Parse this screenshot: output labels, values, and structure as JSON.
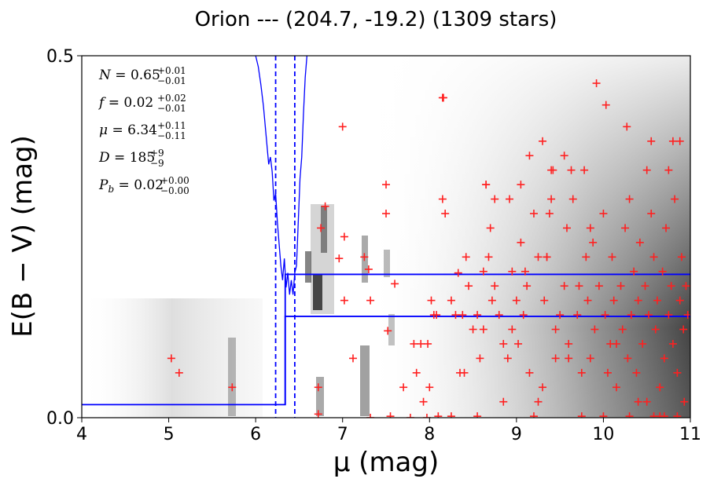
{
  "chart_data": {
    "type": "scatter",
    "title": "Orion --- (204.7, -19.2) (1309 stars)",
    "xlabel": "μ (mag)",
    "ylabel": "E(B − V) (mag)",
    "xlim": [
      4,
      11
    ],
    "ylim": [
      0,
      0.5
    ],
    "xticks": [
      "4",
      "5",
      "6",
      "7",
      "8",
      "9",
      "10",
      "11"
    ],
    "yticks": [
      "0.0",
      "0.5"
    ],
    "annotations": {
      "N": {
        "name": "N",
        "value": "0.65",
        "up": "+0.01",
        "down": "−0.01"
      },
      "f": {
        "name": "f",
        "value": "0.02",
        "up": "+0.02",
        "down": "−0.01"
      },
      "mu": {
        "name": "μ",
        "value": "6.34",
        "up": "+0.11",
        "down": "−0.11"
      },
      "D": {
        "name": "D",
        "value": "185",
        "up": "+9",
        "down": "−9"
      },
      "Pb": {
        "name": "P",
        "sub": "b",
        "value": "0.02",
        "up": "+0.00",
        "down": "−0.00"
      }
    },
    "marker_color": "#ff2020",
    "line_color": "#0000ff",
    "grayscale_background": "stellar extinction probability density",
    "step_model": {
      "mu_break": 6.34,
      "ebv_near": 0.018,
      "ebv_far_lower": 0.14,
      "ebv_far_upper": 0.198
    },
    "mu_bounds_dashed": [
      6.23,
      6.45
    ],
    "foreground_dust": {
      "x": [
        6.0,
        6.03,
        6.06,
        6.09,
        6.12,
        6.15,
        6.17,
        6.19,
        6.21,
        6.23,
        6.25,
        6.27,
        6.29,
        6.31,
        6.33,
        6.35,
        6.37,
        6.39,
        6.41,
        6.43,
        6.45,
        6.47,
        6.49,
        6.51,
        6.53,
        6.55,
        6.57,
        6.59
      ],
      "y": [
        0.5,
        0.485,
        0.46,
        0.43,
        0.39,
        0.35,
        0.36,
        0.34,
        0.3,
        0.31,
        0.27,
        0.24,
        0.21,
        0.19,
        0.22,
        0.18,
        0.2,
        0.17,
        0.19,
        0.17,
        0.2,
        0.21,
        0.27,
        0.33,
        0.36,
        0.42,
        0.47,
        0.5
      ]
    },
    "points": {
      "x": [
        5.03,
        5.12,
        5.73,
        6.72,
        6.75,
        6.8,
        6.96,
        7.0,
        7.02,
        7.12,
        7.25,
        7.3,
        7.32,
        7.5,
        7.52,
        7.6,
        7.7,
        7.78,
        7.82,
        7.85,
        7.9,
        7.93,
        7.97,
        8.0,
        8.02,
        8.05,
        8.08,
        8.15,
        8.16,
        8.18,
        8.25,
        8.3,
        8.33,
        8.35,
        8.38,
        8.42,
        8.45,
        8.5,
        8.55,
        8.58,
        8.62,
        8.65,
        8.68,
        8.7,
        8.72,
        8.75,
        8.8,
        8.85,
        8.9,
        8.92,
        8.95,
        9.0,
        9.02,
        9.05,
        9.08,
        9.1,
        9.12,
        9.15,
        9.2,
        9.25,
        9.3,
        9.32,
        9.35,
        9.38,
        9.4,
        9.42,
        9.45,
        9.5,
        9.55,
        9.58,
        9.6,
        9.65,
        9.7,
        9.72,
        9.75,
        9.8,
        9.82,
        9.85,
        9.88,
        9.9,
        9.95,
        10.0,
        10.02,
        10.05,
        10.08,
        10.1,
        10.12,
        10.15,
        10.2,
        10.22,
        10.25,
        10.28,
        10.3,
        10.32,
        10.35,
        10.38,
        10.4,
        10.42,
        10.45,
        10.48,
        10.5,
        10.52,
        10.55,
        10.58,
        10.6,
        10.62,
        10.65,
        10.68,
        10.7,
        10.72,
        10.75,
        10.78,
        10.8,
        10.82,
        10.85,
        10.88,
        10.9,
        10.92,
        10.95,
        10.97,
        9.92,
        10.03,
        8.15,
        9.3,
        10.27,
        10.55,
        10.8,
        10.88,
        9.63,
        9.78,
        8.65,
        8.75,
        9.4,
        9.55,
        9.05,
        9.15,
        8.95,
        9.6,
        10.5,
        10.75,
        7.55,
        8.1,
        8.25,
        8.55,
        9.2,
        9.75,
        10.3,
        10.65,
        10.85,
        6.72,
        7.02,
        7.32,
        7.5,
        7.98,
        8.4,
        8.62,
        8.85,
        9.25,
        9.35,
        9.45,
        9.85,
        10.0,
        10.15,
        10.4,
        10.58,
        10.7,
        10.93
      ],
      "y": [
        0.082,
        0.062,
        0.042,
        0.005,
        0.262,
        0.292,
        0.22,
        0.402,
        0.25,
        0.082,
        0.222,
        0.205,
        0.0,
        0.322,
        0.12,
        0.185,
        0.042,
        0.0,
        0.102,
        0.062,
        0.102,
        0.022,
        0.0,
        0.042,
        0.162,
        0.142,
        0.142,
        0.302,
        0.442,
        0.282,
        0.162,
        0.142,
        0.2,
        0.062,
        0.142,
        0.222,
        0.182,
        0.122,
        0.142,
        0.082,
        0.202,
        0.322,
        0.222,
        0.262,
        0.162,
        0.182,
        0.142,
        0.102,
        0.082,
        0.302,
        0.202,
        0.162,
        0.102,
        0.242,
        0.142,
        0.202,
        0.182,
        0.062,
        0.282,
        0.222,
        0.042,
        0.162,
        0.222,
        0.282,
        0.302,
        0.342,
        0.082,
        0.142,
        0.182,
        0.262,
        0.102,
        0.302,
        0.142,
        0.182,
        0.062,
        0.222,
        0.162,
        0.082,
        0.242,
        0.122,
        0.182,
        0.282,
        0.142,
        0.062,
        0.102,
        0.222,
        0.162,
        0.042,
        0.182,
        0.122,
        0.262,
        0.082,
        0.302,
        0.142,
        0.202,
        0.062,
        0.162,
        0.242,
        0.102,
        0.182,
        0.022,
        0.142,
        0.282,
        0.222,
        0.122,
        0.162,
        0.042,
        0.202,
        0.082,
        0.262,
        0.142,
        0.182,
        0.102,
        0.302,
        0.062,
        0.162,
        0.222,
        0.122,
        0.182,
        0.142,
        0.462,
        0.432,
        0.442,
        0.382,
        0.402,
        0.382,
        0.382,
        0.382,
        0.342,
        0.342,
        0.322,
        0.302,
        0.342,
        0.362,
        0.322,
        0.362,
        0.122,
        0.082,
        0.342,
        0.342,
        0.002,
        0.002,
        0.002,
        0.002,
        0.002,
        0.002,
        0.002,
        0.002,
        0.002,
        0.042,
        0.162,
        0.162,
        0.282,
        0.102,
        0.062,
        0.122,
        0.022,
        0.022,
        0.222,
        0.122,
        0.262,
        0.002,
        0.102,
        0.022,
        0.002,
        0.002,
        0.022
      ]
    }
  }
}
